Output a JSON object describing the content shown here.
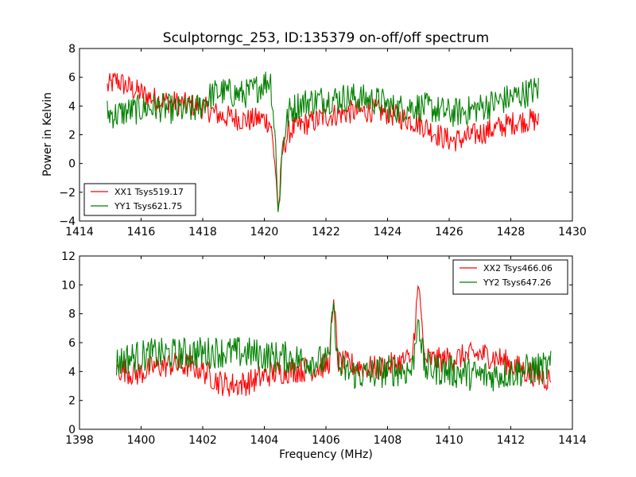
{
  "figure": {
    "title": "Sculptorngc_253, ID:135379 on-off/off spectrum",
    "xlabel": "Frequency (MHz)",
    "ylabel": "Power in Kelvin"
  },
  "chart_data": [
    {
      "type": "line",
      "title": "Sculptorngc_253, ID:135379 on-off/off spectrum",
      "xlabel": "",
      "ylabel": "Power in Kelvin",
      "xlim": [
        1414,
        1430
      ],
      "ylim": [
        -4,
        8
      ],
      "xticks": [
        "1414",
        "1416",
        "1418",
        "1420",
        "1422",
        "1424",
        "1426",
        "1428",
        "1430"
      ],
      "yticks": [
        "−4",
        "−2",
        "0",
        "2",
        "4",
        "6",
        "8"
      ],
      "grid": false,
      "legend_position": "lower-left",
      "x_range_data": [
        1414.9,
        1428.9
      ],
      "series": [
        {
          "name": "XX1 Tsys519.17",
          "color": "#ff0000",
          "x": [
            1414.9,
            1415.2,
            1415.5,
            1415.8,
            1416.0,
            1416.3,
            1416.6,
            1416.9,
            1417.2,
            1417.5,
            1417.8,
            1418.0,
            1418.3,
            1418.6,
            1418.9,
            1419.2,
            1419.5,
            1419.8,
            1420.0,
            1420.2,
            1420.35,
            1420.45,
            1420.6,
            1420.8,
            1421.1,
            1421.4,
            1421.7,
            1422.0,
            1422.3,
            1422.6,
            1422.9,
            1423.2,
            1423.5,
            1423.8,
            1424.0,
            1424.3,
            1424.6,
            1424.9,
            1425.2,
            1425.5,
            1425.8,
            1426.1,
            1426.4,
            1426.7,
            1427.0,
            1427.3,
            1427.6,
            1427.9,
            1428.2,
            1428.5,
            1428.9
          ],
          "y": [
            5.3,
            5.8,
            5.4,
            5.1,
            4.9,
            4.6,
            4.4,
            4.3,
            4.2,
            4.1,
            4.0,
            3.9,
            3.6,
            3.3,
            3.2,
            3.1,
            3.0,
            3.1,
            3.1,
            2.8,
            0.0,
            -3.4,
            1.0,
            2.2,
            2.6,
            2.8,
            3.0,
            3.3,
            3.4,
            3.5,
            3.6,
            3.6,
            3.7,
            3.6,
            3.5,
            3.3,
            3.1,
            2.9,
            2.6,
            2.2,
            1.8,
            1.6,
            1.7,
            1.9,
            2.1,
            2.3,
            2.5,
            2.7,
            2.9,
            3.0,
            3.0
          ]
        },
        {
          "name": "YY1 Tsys621.75",
          "color": "#008000",
          "x": [
            1414.9,
            1415.2,
            1415.5,
            1415.8,
            1416.0,
            1416.3,
            1416.6,
            1416.9,
            1417.2,
            1417.5,
            1417.8,
            1418.0,
            1418.3,
            1418.6,
            1418.9,
            1419.2,
            1419.5,
            1419.8,
            1420.0,
            1420.2,
            1420.35,
            1420.45,
            1420.6,
            1420.8,
            1421.1,
            1421.4,
            1421.7,
            1422.0,
            1422.3,
            1422.6,
            1422.9,
            1423.2,
            1423.5,
            1423.8,
            1424.0,
            1424.3,
            1424.6,
            1424.9,
            1425.2,
            1425.5,
            1425.8,
            1426.1,
            1426.4,
            1426.7,
            1427.0,
            1427.3,
            1427.6,
            1427.9,
            1428.2,
            1428.5,
            1428.9
          ],
          "y": [
            3.5,
            3.4,
            3.6,
            3.7,
            3.8,
            3.9,
            3.9,
            3.8,
            3.7,
            3.7,
            3.8,
            4.2,
            4.8,
            5.0,
            4.9,
            4.8,
            4.9,
            5.3,
            5.6,
            5.9,
            2.0,
            -3.6,
            1.5,
            3.6,
            4.1,
            4.3,
            4.4,
            4.5,
            4.5,
            4.6,
            4.6,
            4.5,
            4.4,
            4.3,
            4.0,
            3.8,
            3.9,
            4.0,
            3.9,
            3.8,
            3.6,
            3.5,
            3.6,
            3.7,
            3.9,
            4.1,
            4.3,
            4.5,
            4.7,
            4.9,
            5.2
          ]
        }
      ]
    },
    {
      "type": "line",
      "title": "",
      "xlabel": "Frequency (MHz)",
      "ylabel": "",
      "xlim": [
        1398,
        1414
      ],
      "ylim": [
        0,
        12
      ],
      "xticks": [
        "1398",
        "1400",
        "1402",
        "1404",
        "1406",
        "1408",
        "1410",
        "1412",
        "1414"
      ],
      "yticks": [
        "0",
        "2",
        "4",
        "6",
        "8",
        "10",
        "12"
      ],
      "grid": false,
      "legend_position": "upper-right",
      "x_range_data": [
        1399.2,
        1413.3
      ],
      "series": [
        {
          "name": "XX2 Tsys466.06",
          "color": "#ff0000",
          "x": [
            1399.2,
            1399.5,
            1399.8,
            1400.1,
            1400.4,
            1400.7,
            1401.0,
            1401.3,
            1401.6,
            1401.9,
            1402.2,
            1402.5,
            1402.8,
            1403.1,
            1403.4,
            1403.7,
            1404.0,
            1404.3,
            1404.6,
            1404.9,
            1405.2,
            1405.5,
            1405.8,
            1406.1,
            1406.25,
            1406.4,
            1406.7,
            1407.0,
            1407.3,
            1407.6,
            1407.9,
            1408.2,
            1408.5,
            1408.8,
            1409.0,
            1409.2,
            1409.5,
            1409.8,
            1410.1,
            1410.4,
            1410.7,
            1411.0,
            1411.3,
            1411.6,
            1411.9,
            1412.2,
            1412.5,
            1412.8,
            1413.0,
            1413.3
          ],
          "y": [
            4.2,
            4.1,
            3.8,
            4.0,
            4.3,
            4.4,
            4.5,
            4.4,
            4.4,
            4.2,
            3.8,
            3.3,
            3.1,
            3.1,
            3.2,
            3.4,
            3.7,
            3.9,
            4.0,
            4.1,
            4.1,
            4.2,
            4.3,
            4.5,
            9.0,
            4.6,
            4.5,
            4.4,
            4.3,
            4.2,
            4.3,
            4.5,
            4.7,
            4.9,
            10.2,
            4.9,
            4.8,
            4.8,
            4.9,
            5.0,
            5.1,
            5.2,
            5.1,
            4.9,
            4.6,
            4.3,
            4.0,
            3.8,
            3.6,
            3.5
          ]
        },
        {
          "name": "YY2 Tsys647.26",
          "color": "#008000",
          "x": [
            1399.2,
            1399.5,
            1399.8,
            1400.1,
            1400.4,
            1400.7,
            1401.0,
            1401.3,
            1401.6,
            1401.9,
            1402.2,
            1402.5,
            1402.8,
            1403.1,
            1403.4,
            1403.7,
            1404.0,
            1404.3,
            1404.6,
            1404.9,
            1405.2,
            1405.5,
            1405.8,
            1406.1,
            1406.25,
            1406.4,
            1406.7,
            1407.0,
            1407.3,
            1407.6,
            1407.9,
            1408.2,
            1408.5,
            1408.8,
            1409.0,
            1409.2,
            1409.5,
            1409.8,
            1410.1,
            1410.4,
            1410.7,
            1411.0,
            1411.3,
            1411.6,
            1411.9,
            1412.2,
            1412.5,
            1412.8,
            1413.0,
            1413.3
          ],
          "y": [
            4.6,
            4.9,
            5.0,
            5.1,
            5.2,
            5.2,
            5.2,
            5.2,
            5.3,
            5.3,
            5.3,
            5.4,
            5.3,
            5.3,
            5.3,
            5.2,
            5.1,
            5.0,
            5.0,
            4.9,
            4.8,
            4.8,
            4.7,
            4.6,
            8.8,
            4.3,
            4.0,
            3.8,
            3.8,
            3.9,
            4.0,
            4.1,
            4.1,
            4.1,
            7.8,
            4.2,
            4.2,
            4.1,
            4.0,
            3.9,
            3.8,
            3.7,
            3.7,
            3.8,
            3.9,
            4.0,
            4.1,
            4.2,
            4.2,
            4.3
          ]
        }
      ]
    }
  ]
}
